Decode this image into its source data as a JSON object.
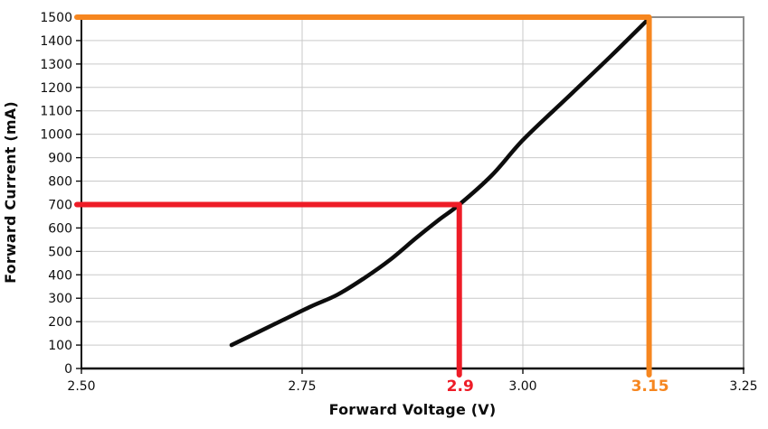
{
  "page": {
    "background": "#ffffff"
  },
  "chart_data": {
    "type": "line",
    "title": "",
    "xlabel": "Forward Voltage (V)",
    "ylabel": "Forward Current (mA)",
    "xlim": [
      2.5,
      3.25
    ],
    "ylim": [
      0,
      1500
    ],
    "x_ticks": [
      {
        "v": 2.5,
        "label": "2.50"
      },
      {
        "v": 2.75,
        "label": "2.75"
      },
      {
        "v": 3.0,
        "label": "3.00"
      },
      {
        "v": 3.25,
        "label": "3.25"
      }
    ],
    "y_ticks": [
      {
        "v": 0,
        "label": "0"
      },
      {
        "v": 100,
        "label": "100"
      },
      {
        "v": 200,
        "label": "200"
      },
      {
        "v": 300,
        "label": "300"
      },
      {
        "v": 400,
        "label": "400"
      },
      {
        "v": 500,
        "label": "500"
      },
      {
        "v": 600,
        "label": "600"
      },
      {
        "v": 700,
        "label": "700"
      },
      {
        "v": 800,
        "label": "800"
      },
      {
        "v": 900,
        "label": "900"
      },
      {
        "v": 1000,
        "label": "1000"
      },
      {
        "v": 1100,
        "label": "1100"
      },
      {
        "v": 1200,
        "label": "1200"
      },
      {
        "v": 1300,
        "label": "1300"
      },
      {
        "v": 1400,
        "label": "1400"
      },
      {
        "v": 1500,
        "label": "1500"
      }
    ],
    "grid": {
      "horizontal": true,
      "vertical_lines_at": [
        2.75,
        3.0
      ],
      "color": "#c9c9c9"
    },
    "axis_color": "#0d0d0d",
    "border_color": "#8d8d8d",
    "tick_label_color": "#0d0d0d",
    "legend": "none",
    "series": [
      {
        "name": "forward-iv-curve",
        "color": "#0d0d0d",
        "points": [
          [
            2.67,
            100
          ],
          [
            2.7,
            155
          ],
          [
            2.73,
            210
          ],
          [
            2.76,
            265
          ],
          [
            2.79,
            315
          ],
          [
            2.82,
            385
          ],
          [
            2.85,
            465
          ],
          [
            2.88,
            560
          ],
          [
            2.905,
            635
          ],
          [
            2.928,
            700
          ],
          [
            2.965,
            825
          ],
          [
            3.0,
            975
          ],
          [
            3.05,
            1155
          ],
          [
            3.1,
            1335
          ],
          [
            3.143,
            1495
          ]
        ]
      }
    ],
    "annotations": [
      {
        "name": "red-crosshair",
        "label": "2.9",
        "x": 2.9,
        "x_plotted": 2.928,
        "y": 700,
        "color": "#ee1c27"
      },
      {
        "name": "orange-crosshair",
        "label": "3.15",
        "x": 3.15,
        "x_plotted": 3.143,
        "y": 1500,
        "color": "#f6861f"
      }
    ]
  }
}
